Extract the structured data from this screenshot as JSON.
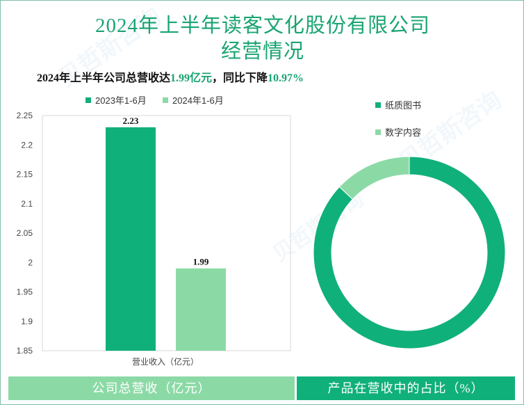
{
  "header": {
    "title_line1": "2024年上半年读客文化股份有限公司",
    "title_line2": "经营情况",
    "subtitle_prefix": "2024年上半年公司总营收达",
    "subtitle_revenue": "1.99亿元",
    "subtitle_middle": "，同比下降",
    "subtitle_decline": "10.97%"
  },
  "colors": {
    "accent": "#19a472",
    "series_2023": "#10b07a",
    "series_2024": "#8bdaa6",
    "paper_books": "#10b07a",
    "digital_content": "#8bdaa6"
  },
  "chart_data": [
    {
      "type": "bar",
      "categories": [
        "营业收入（亿元）"
      ],
      "series": [
        {
          "name": "2023年1-6月",
          "values": [
            2.23
          ],
          "color": "#10b07a"
        },
        {
          "name": "2024年1-6月",
          "values": [
            1.99
          ],
          "color": "#8bdaa6"
        }
      ],
      "yticks": [
        "1.85",
        "1.9",
        "1.95",
        "2",
        "2.05",
        "2.1",
        "2.15",
        "2.2",
        "2.25"
      ],
      "ylim": [
        1.85,
        2.25
      ],
      "xlabel": "营业收入（亿元）",
      "legend": "top",
      "grid": false
    },
    {
      "type": "pie",
      "style": "donut",
      "labels": [
        "纸质图书",
        "数字内容"
      ],
      "values": [
        87,
        13
      ],
      "colors": [
        "#10b07a",
        "#8bdaa6"
      ],
      "legend": "top-right"
    }
  ],
  "footer": {
    "left_label": "公司总营收（亿元）",
    "right_label": "产品在营收中的占比（%）"
  }
}
